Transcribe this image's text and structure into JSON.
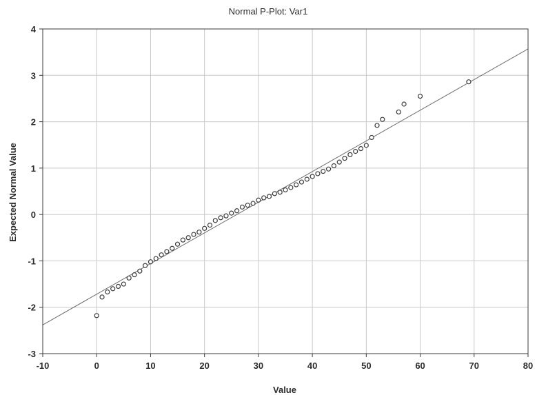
{
  "chart_data": {
    "type": "scatter",
    "title": "Normal P-Plot: Var1",
    "xlabel": "Value",
    "ylabel": "Expected Normal Value",
    "xlim": [
      -10,
      80
    ],
    "ylim": [
      -3,
      4
    ],
    "xticks": [
      "-10",
      "0",
      "10",
      "20",
      "30",
      "40",
      "50",
      "60",
      "70",
      "80"
    ],
    "yticks": [
      "-3",
      "-2",
      "-1",
      "0",
      "1",
      "2",
      "3",
      "4"
    ],
    "grid": true,
    "marker": "open-circle",
    "colors": {
      "grid": "#c8c8c8",
      "marker": "#3a3a3a",
      "line": "#6a6a6a",
      "axis": "#3a3a3a"
    },
    "reference_line": {
      "x": [
        -10,
        80
      ],
      "y": [
        -2.38,
        3.57
      ]
    },
    "points": {
      "x": [
        0,
        1,
        2,
        3,
        4,
        5,
        6,
        7,
        8,
        9,
        10,
        11,
        12,
        13,
        14,
        15,
        16,
        17,
        18,
        19,
        20,
        21,
        22,
        23,
        24,
        25,
        26,
        27,
        28,
        29,
        30,
        31,
        32,
        33,
        34,
        35,
        36,
        37,
        38,
        39,
        40,
        41,
        42,
        43,
        44,
        45,
        46,
        47,
        48,
        49,
        50,
        51,
        52,
        53,
        56,
        57,
        60,
        69
      ],
      "y": [
        -2.18,
        -1.78,
        -1.67,
        -1.6,
        -1.55,
        -1.5,
        -1.37,
        -1.3,
        -1.22,
        -1.1,
        -1.02,
        -0.95,
        -0.87,
        -0.8,
        -0.73,
        -0.64,
        -0.55,
        -0.5,
        -0.43,
        -0.38,
        -0.3,
        -0.23,
        -0.13,
        -0.07,
        -0.03,
        0.03,
        0.08,
        0.16,
        0.2,
        0.24,
        0.31,
        0.36,
        0.39,
        0.45,
        0.48,
        0.53,
        0.58,
        0.64,
        0.7,
        0.76,
        0.82,
        0.88,
        0.93,
        0.98,
        1.05,
        1.13,
        1.21,
        1.29,
        1.36,
        1.42,
        1.49,
        1.66,
        1.92,
        2.05,
        2.21,
        2.38,
        2.55,
        2.86
      ]
    }
  }
}
